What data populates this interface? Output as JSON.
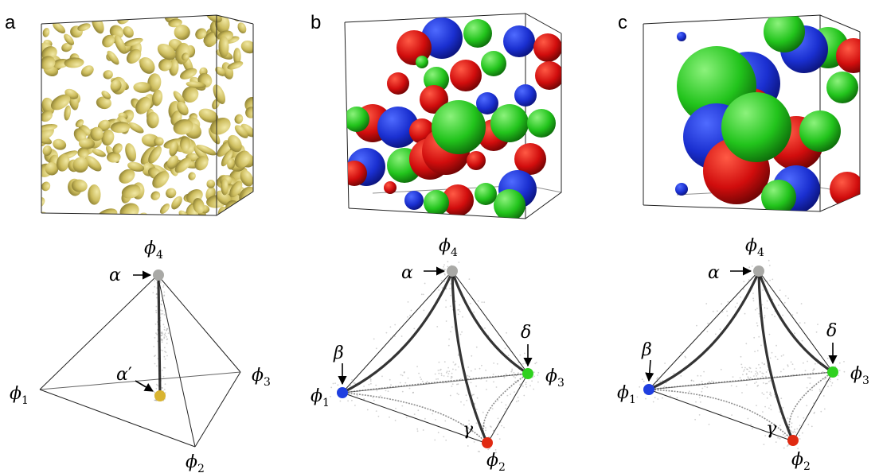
{
  "panels": [
    {
      "label": "a",
      "vertices": {
        "top": "ϕ",
        "top_sub": "4",
        "left": "ϕ",
        "left_sub": "1",
        "right": "ϕ",
        "right_sub": "3",
        "bottom": "ϕ",
        "bottom_sub": "2"
      },
      "phases": [
        {
          "name": "α",
          "color": "#a9a9a6"
        },
        {
          "name": "α",
          "prime": "′",
          "color": "#d9b431"
        }
      ],
      "structure_color": "#d2c46a"
    },
    {
      "label": "b",
      "vertices": {
        "top": "ϕ",
        "top_sub": "4",
        "left": "ϕ",
        "left_sub": "1",
        "right": "ϕ",
        "right_sub": "3",
        "bottom": "ϕ",
        "bottom_sub": "2"
      },
      "phases": [
        {
          "name": "α",
          "color": "#a9a9a6"
        },
        {
          "name": "β",
          "color": "#1f3fe0"
        },
        {
          "name": "γ",
          "color": "#e02a12"
        },
        {
          "name": "δ",
          "color": "#2fd11f"
        }
      ]
    },
    {
      "label": "c",
      "vertices": {
        "top": "ϕ",
        "top_sub": "4",
        "left": "ϕ",
        "left_sub": "1",
        "right": "ϕ",
        "right_sub": "3",
        "bottom": "ϕ",
        "bottom_sub": "2"
      },
      "phases": [
        {
          "name": "α",
          "color": "#a9a9a6"
        },
        {
          "name": "β",
          "color": "#1f3fe0"
        },
        {
          "name": "γ",
          "color": "#e02a12"
        },
        {
          "name": "δ",
          "color": "#2fd11f"
        }
      ]
    }
  ],
  "colors": {
    "blue": "#1f33d6",
    "red": "#cf0d0d",
    "green": "#22c41c",
    "yellow": "#d2c46a"
  }
}
